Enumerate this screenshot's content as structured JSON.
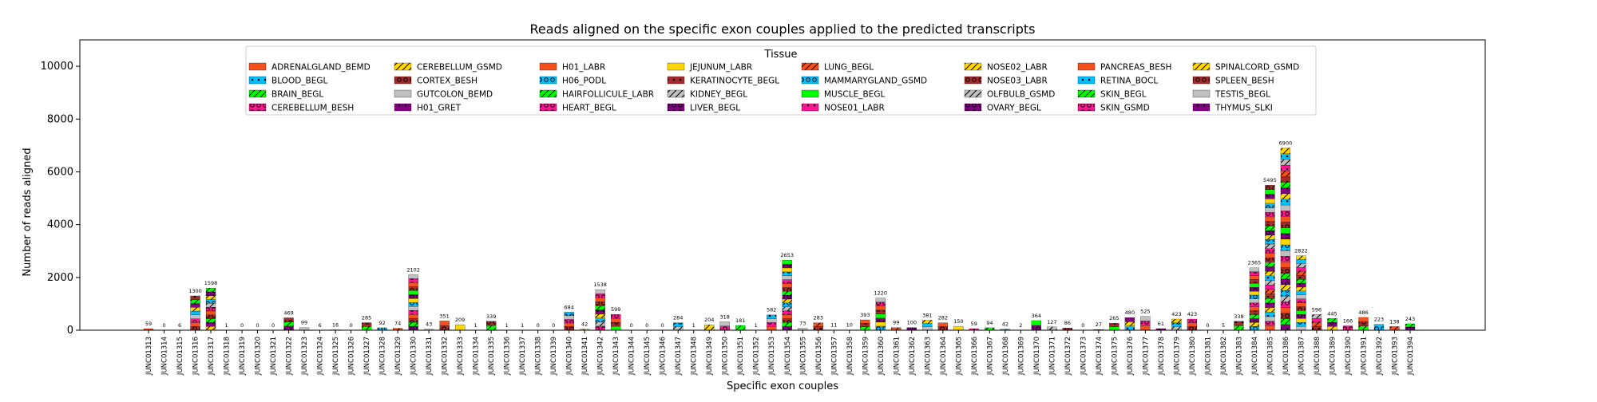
{
  "chart_data": {
    "type": "bar",
    "stacked": true,
    "title": "Reads aligned on the specific exon couples applied to the predicted transcripts",
    "xlabel": "Specific exon couples",
    "ylabel": "Number of reads aligned",
    "ylim": [
      0,
      11000
    ],
    "yticks": [
      0,
      2000,
      4000,
      6000,
      8000,
      10000
    ],
    "grid": false,
    "legend": {
      "title": "Tissue",
      "placement": "top-center",
      "ncol": 8,
      "entries": [
        {
          "label": "ADRENALGLAND_BEMD",
          "color": "#f4511e",
          "hatch": "none"
        },
        {
          "label": "BLOOD_BEGL",
          "color": "#00bfff",
          "hatch": "dot"
        },
        {
          "label": "BRAIN_BEGL",
          "color": "#00ff00",
          "hatch": "slash"
        },
        {
          "label": "CEREBELLUM_BESH",
          "color": "#ff1493",
          "hatch": "circle"
        },
        {
          "label": "CEREBELLUM_GSMD",
          "color": "#ffd700",
          "hatch": "slash"
        },
        {
          "label": "CORTEX_BESH",
          "color": "#a52a2a",
          "hatch": "circle"
        },
        {
          "label": "GUTCOLON_BEMD",
          "color": "#c0c0c0",
          "hatch": "none"
        },
        {
          "label": "H01_GRET",
          "color": "#800080",
          "hatch": "dot"
        },
        {
          "label": "H01_LABR",
          "color": "#f4511e",
          "hatch": "none"
        },
        {
          "label": "H06_PODL",
          "color": "#00bfff",
          "hatch": "circle"
        },
        {
          "label": "HAIRFOLLICULE_LABR",
          "color": "#00ff00",
          "hatch": "slash"
        },
        {
          "label": "HEART_BEGL",
          "color": "#ff1493",
          "hatch": "circle"
        },
        {
          "label": "JEJUNUM_LABR",
          "color": "#ffd700",
          "hatch": "none"
        },
        {
          "label": "KERATINOCYTE_BEGL",
          "color": "#a52a2a",
          "hatch": "dot"
        },
        {
          "label": "KIDNEY_BEGL",
          "color": "#c0c0c0",
          "hatch": "slash"
        },
        {
          "label": "LIVER_BEGL",
          "color": "#800080",
          "hatch": "circle"
        },
        {
          "label": "LUNG_BEGL",
          "color": "#f4511e",
          "hatch": "slash"
        },
        {
          "label": "MAMMARYGLAND_GSMD",
          "color": "#00bfff",
          "hatch": "circle"
        },
        {
          "label": "MUSCLE_BEGL",
          "color": "#00ff00",
          "hatch": "none"
        },
        {
          "label": "NOSE01_LABR",
          "color": "#ff1493",
          "hatch": "dot"
        },
        {
          "label": "NOSE02_LABR",
          "color": "#ffd700",
          "hatch": "slash"
        },
        {
          "label": "NOSE03_LABR",
          "color": "#a52a2a",
          "hatch": "circle"
        },
        {
          "label": "OLFBULB_GSMD",
          "color": "#c0c0c0",
          "hatch": "slash"
        },
        {
          "label": "OVARY_BEGL",
          "color": "#800080",
          "hatch": "circle"
        },
        {
          "label": "PANCREAS_BESH",
          "color": "#f4511e",
          "hatch": "none"
        },
        {
          "label": "RETINA_BOCL",
          "color": "#00bfff",
          "hatch": "dot"
        },
        {
          "label": "SKIN_BEGL",
          "color": "#00ff00",
          "hatch": "slash"
        },
        {
          "label": "SKIN_GSMD",
          "color": "#ff1493",
          "hatch": "circle"
        },
        {
          "label": "SPINALCORD_GSMD",
          "color": "#ffd700",
          "hatch": "slash"
        },
        {
          "label": "SPLEEN_BESH",
          "color": "#a52a2a",
          "hatch": "circle"
        },
        {
          "label": "TESTIS_BEGL",
          "color": "#c0c0c0",
          "hatch": "none"
        },
        {
          "label": "THYMUS_SLKI",
          "color": "#800080",
          "hatch": "dot"
        }
      ]
    },
    "categories": [
      "JUNC01313",
      "JUNC01314",
      "JUNC01315",
      "JUNC01316",
      "JUNC01317",
      "JUNC01318",
      "JUNC01319",
      "JUNC01320",
      "JUNC01321",
      "JUNC01322",
      "JUNC01323",
      "JUNC01324",
      "JUNC01325",
      "JUNC01326",
      "JUNC01327",
      "JUNC01328",
      "JUNC01329",
      "JUNC01330",
      "JUNC01331",
      "JUNC01332",
      "JUNC01333",
      "JUNC01334",
      "JUNC01335",
      "JUNC01336",
      "JUNC01337",
      "JUNC01338",
      "JUNC01339",
      "JUNC01340",
      "JUNC01341",
      "JUNC01342",
      "JUNC01343",
      "JUNC01344",
      "JUNC01345",
      "JUNC01346",
      "JUNC01347",
      "JUNC01348",
      "JUNC01349",
      "JUNC01350",
      "JUNC01351",
      "JUNC01352",
      "JUNC01353",
      "JUNC01354",
      "JUNC01355",
      "JUNC01356",
      "JUNC01357",
      "JUNC01358",
      "JUNC01359",
      "JUNC01360",
      "JUNC01361",
      "JUNC01362",
      "JUNC01363",
      "JUNC01364",
      "JUNC01365",
      "JUNC01366",
      "JUNC01367",
      "JUNC01368",
      "JUNC01369",
      "JUNC01370",
      "JUNC01371",
      "JUNC01372",
      "JUNC01373",
      "JUNC01374",
      "JUNC01375",
      "JUNC01376",
      "JUNC01377",
      "JUNC01378",
      "JUNC01379",
      "JUNC01380",
      "JUNC01381",
      "JUNC01382",
      "JUNC01383",
      "JUNC01384",
      "JUNC01385",
      "JUNC01386",
      "JUNC01387",
      "JUNC01388",
      "JUNC01389",
      "JUNC01390",
      "JUNC01391",
      "JUNC01392",
      "JUNC01393",
      "JUNC01394"
    ],
    "totals": [
      59,
      0,
      6,
      1300,
      1598,
      1,
      0,
      0,
      0,
      469,
      99,
      6,
      16,
      0,
      285,
      92,
      74,
      2102,
      43,
      351,
      209,
      1,
      339,
      1,
      1,
      0,
      0,
      684,
      42,
      1538,
      599,
      0,
      0,
      0,
      284,
      1,
      204,
      318,
      181,
      1,
      582,
      2653,
      73,
      283,
      11,
      10,
      393,
      1220,
      99,
      100,
      381,
      282,
      150,
      59,
      94,
      42,
      2,
      364,
      127,
      86,
      0,
      27,
      265,
      480,
      525,
      61,
      423,
      423,
      0,
      5,
      338,
      2365,
      5495,
      6900,
      2822,
      596,
      445,
      166,
      486,
      223,
      138,
      243
    ]
  }
}
